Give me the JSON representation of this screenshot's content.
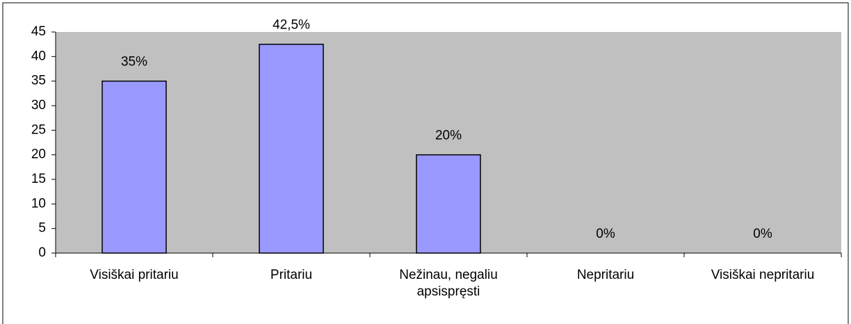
{
  "chart_data": {
    "type": "bar",
    "categories": [
      "Visiškai pritariu",
      "Pritariu",
      "Nežinau, negaliu apsispręsti",
      "Nepritariu",
      "Visiškai nepritariu"
    ],
    "values": [
      35,
      42.5,
      20,
      0,
      0
    ],
    "value_labels": [
      "35%",
      "42,5%",
      "20%",
      "0%",
      "0%"
    ],
    "color": "#9999ff",
    "ylim": [
      0,
      45
    ],
    "yticks": [
      0,
      5,
      10,
      15,
      20,
      25,
      30,
      35,
      40,
      45
    ],
    "grid": false
  }
}
